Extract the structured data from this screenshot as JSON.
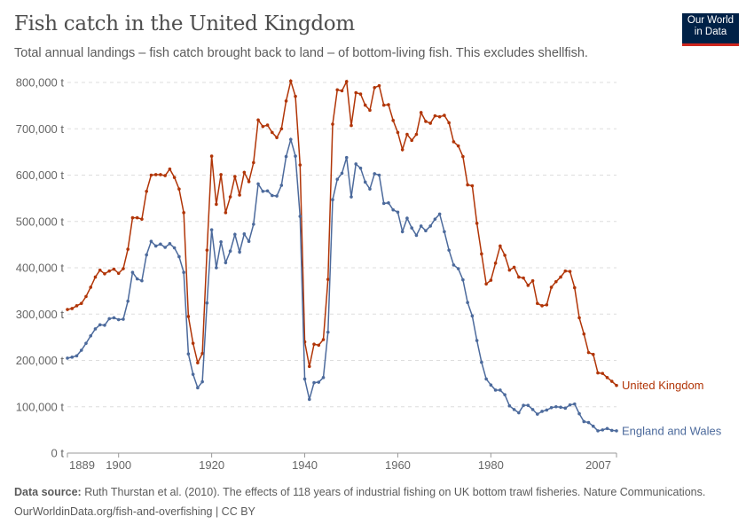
{
  "header": {
    "title": "Fish catch in the United Kingdom",
    "subtitle": "Total annual landings – fish catch brought back to land – of bottom-living fish. This excludes shellfish.",
    "logo": "Our World in Data"
  },
  "footer": {
    "source_label": "Data source:",
    "source_text": " Ruth Thurstan et al. (2010). The effects of 118 years of industrial fishing on UK bottom trawl fisheries. Nature Communications.",
    "url": "OurWorldinData.org/fish-and-overfishing | CC BY"
  },
  "chart_data": {
    "type": "line",
    "xlim": [
      1889,
      2007
    ],
    "ylim": [
      0,
      800000
    ],
    "x_ticks": [
      "1889",
      "1900",
      "1920",
      "1940",
      "1960",
      "1980",
      "2007"
    ],
    "y_ticks": [
      "0 t",
      "100,000 t",
      "200,000 t",
      "300,000 t",
      "400,000 t",
      "500,000 t",
      "600,000 t",
      "700,000 t",
      "800,000 t"
    ],
    "grid": "horizontal dashed",
    "legend": "line-end labels",
    "series": [
      {
        "name": "United Kingdom",
        "color": "#b13507",
        "values": [
          310000,
          312000,
          318000,
          323000,
          338000,
          358000,
          380000,
          395000,
          387000,
          393000,
          397000,
          388000,
          398000,
          440000,
          508000,
          508000,
          505000,
          565000,
          600000,
          601000,
          601000,
          599000,
          613000,
          595000,
          570000,
          519000,
          295000,
          237000,
          195000,
          215000,
          438000,
          641000,
          537000,
          601000,
          519000,
          553000,
          597000,
          557000,
          606000,
          586000,
          627000,
          719000,
          705000,
          708000,
          692000,
          681000,
          700000,
          760000,
          803000,
          770000,
          622000,
          240000,
          187000,
          235000,
          233000,
          245000,
          375000,
          710000,
          784000,
          782000,
          802000,
          707000,
          778000,
          775000,
          751000,
          740000,
          789000,
          793000,
          751000,
          752000,
          718000,
          692000,
          655000,
          688000,
          675000,
          688000,
          735000,
          716000,
          712000,
          728000,
          726000,
          729000,
          713000,
          672000,
          663000,
          640000,
          579000,
          577000,
          496000,
          430000,
          365000,
          373000,
          410000,
          447000,
          427000,
          395000,
          401000,
          380000,
          378000,
          362000,
          372000,
          323000,
          318000,
          320000,
          358000,
          370000,
          380000,
          393000,
          392000,
          357000,
          292000,
          257000,
          217000,
          213000,
          173000,
          172000,
          163000,
          155000,
          146000
        ]
      },
      {
        "name": "England and Wales",
        "color": "#4c6a9c",
        "values": [
          205000,
          207000,
          210000,
          222000,
          237000,
          253000,
          268000,
          277000,
          276000,
          290000,
          292000,
          288000,
          289000,
          328000,
          390000,
          376000,
          372000,
          428000,
          457000,
          447000,
          451000,
          444000,
          452000,
          443000,
          424000,
          390000,
          214000,
          170000,
          141000,
          154000,
          324000,
          482000,
          400000,
          456000,
          411000,
          436000,
          472000,
          434000,
          473000,
          457000,
          494000,
          581000,
          565000,
          566000,
          556000,
          555000,
          578000,
          640000,
          677000,
          641000,
          511000,
          160000,
          116000,
          152000,
          153000,
          163000,
          261000,
          547000,
          591000,
          604000,
          638000,
          553000,
          624000,
          615000,
          585000,
          570000,
          603000,
          600000,
          539000,
          540000,
          525000,
          520000,
          478000,
          507000,
          486000,
          470000,
          490000,
          480000,
          490000,
          505000,
          516000,
          478000,
          438000,
          406000,
          398000,
          374000,
          325000,
          296000,
          243000,
          196000,
          160000,
          147000,
          136000,
          136000,
          126000,
          102000,
          94000,
          87000,
          103000,
          103000,
          94000,
          84000,
          90000,
          93000,
          98000,
          100000,
          99000,
          97000,
          104000,
          106000,
          85000,
          68000,
          66000,
          58000,
          48000,
          50000,
          53000,
          49000,
          48000
        ]
      }
    ]
  }
}
